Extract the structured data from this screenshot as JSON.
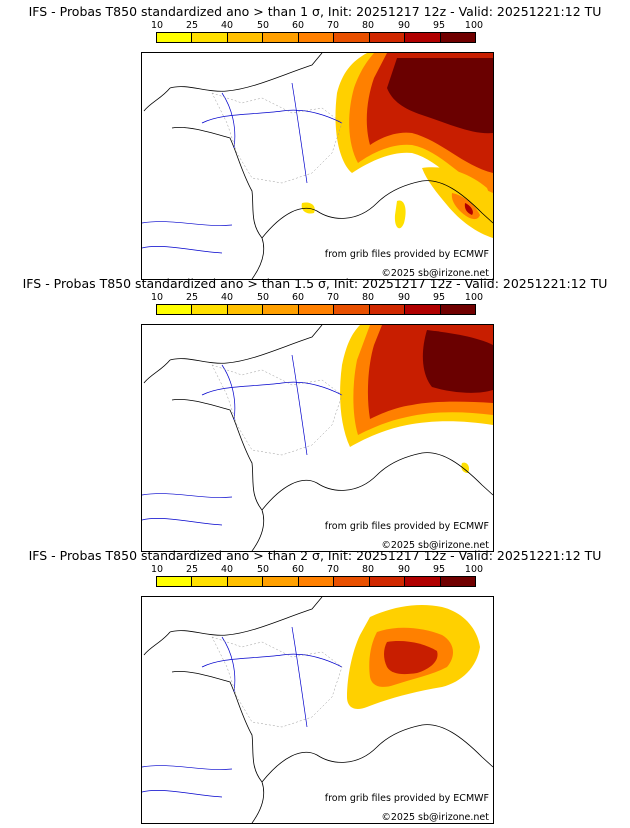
{
  "panels": [
    {
      "title": "IFS - Probas T850  standardized ano > than 1 σ, Init: 20251217 12z - Valid: 20251221:12 TU",
      "credit_grib": "from grib files provided by ECMWF",
      "credit_copyright": "©2025 sb@irizone.net"
    },
    {
      "title": "IFS - Probas T850  standardized ano > than 1.5 σ, Init: 20251217 12z - Valid: 20251221:12 TU",
      "credit_grib": "from grib files provided by ECMWF",
      "credit_copyright": "©2025 sb@irizone.net"
    },
    {
      "title": "IFS - Probas T850  standardized ano > than 2 σ, Init: 20251217 12z - Valid: 20251221:12 TU",
      "credit_grib": "from grib files provided by ECMWF",
      "credit_copyright": "©2025 sb@irizone.net"
    }
  ],
  "legend": {
    "ticks": [
      "10",
      "25",
      "40",
      "50",
      "60",
      "70",
      "80",
      "90",
      "95",
      "100"
    ],
    "colors": [
      "#ffff00",
      "#ffe000",
      "#ffc000",
      "#ffa000",
      "#ff8000",
      "#e85000",
      "#d02800",
      "#b00000",
      "#700000"
    ]
  }
}
